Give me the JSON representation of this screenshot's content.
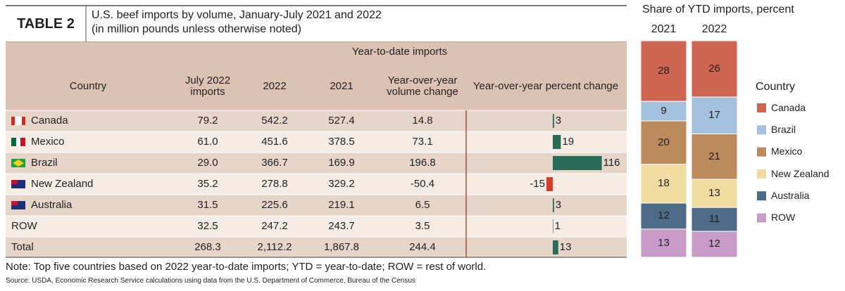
{
  "header": {
    "label": "TABLE 2",
    "title": "U.S. beef imports by volume, January-July 2021 and 2022",
    "subtitle": "(in million pounds unless otherwise noted)"
  },
  "table": {
    "group_header": "Year-to-date imports",
    "columns": [
      "Country",
      "July 2022 imports",
      "2022",
      "2021",
      "Year-over-year volume change",
      "Year-over-year percent change"
    ],
    "rows": [
      [
        "Canada",
        "79.2",
        "542.2",
        "527.4",
        "14.8"
      ],
      [
        "Mexico",
        "61.0",
        "451.6",
        "378.5",
        "73.1"
      ],
      [
        "Brazil",
        "29.0",
        "366.7",
        "169.9",
        "196.8"
      ],
      [
        "New Zealand",
        "35.2",
        "278.8",
        "329.2",
        "-50.4"
      ],
      [
        "Australia",
        "31.5",
        "225.6",
        "219.1",
        "6.5"
      ],
      [
        "ROW",
        "32.5",
        "247.2",
        "243.7",
        "3.5"
      ],
      [
        "Total",
        "268.3",
        "2,112.2",
        "1,867.8",
        "244.4"
      ]
    ]
  },
  "chart_data": [
    {
      "type": "bar",
      "orientation": "horizontal",
      "values": [
        3,
        19,
        116,
        -15,
        3,
        1,
        13
      ],
      "colors": {
        "positive": "#2a6b57",
        "negative": "#d63a2a"
      },
      "xlim": [
        -200,
        175
      ]
    },
    {
      "type": "stacked_bar",
      "title": "Share of YTD imports, percent",
      "categories": [
        "2021",
        "2022"
      ],
      "legend_title": "Country",
      "ylim": [
        0,
        100
      ],
      "series": [
        {
          "name": "Canada",
          "color": "#cf6450",
          "values": [
            28,
            26
          ]
        },
        {
          "name": "Brazil",
          "color": "#a4c2de",
          "values": [
            9,
            17
          ]
        },
        {
          "name": "Mexico",
          "color": "#bc8a5d",
          "values": [
            20,
            21
          ]
        },
        {
          "name": "New Zealand",
          "color": "#f0dca0",
          "values": [
            18,
            13
          ]
        },
        {
          "name": "Australia",
          "color": "#4d6a86",
          "values": [
            12,
            11
          ]
        },
        {
          "name": "ROW",
          "color": "#c89cc8",
          "values": [
            13,
            12
          ]
        }
      ]
    }
  ],
  "footer": {
    "note": "Note: Top five countries based on 2022 year-to-date imports; YTD = year-to-date; ROW = rest of world.",
    "source": "Source: USDA, Economic Research Service calculations using data from the U.S. Department of Commerce, Bureau of the Census"
  }
}
